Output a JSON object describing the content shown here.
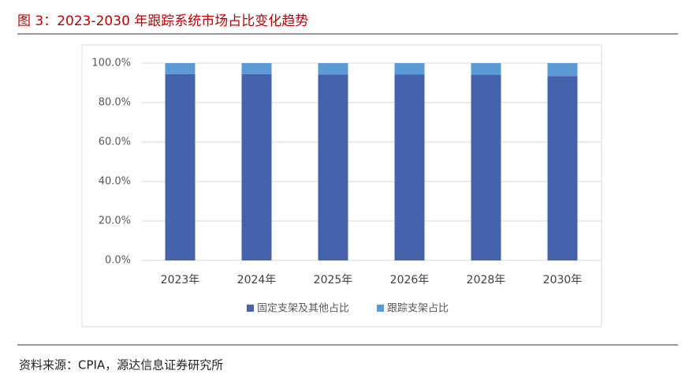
{
  "chart_data": {
    "type": "stacked_bar",
    "title": "图 3：2023-2030 年跟踪系统市场占比变化趋势",
    "source": "资料来源：CPIA，源达信息证券研究所",
    "categories": [
      "2023年",
      "2024年",
      "2025年",
      "2026年",
      "2028年",
      "2030年"
    ],
    "series": [
      {
        "name": "固定支架及其他占比",
        "color": "#4563ad",
        "values": [
          94.5,
          94.5,
          94.3,
          94.2,
          94.0,
          93.5
        ]
      },
      {
        "name": "跟踪支架占比",
        "color": "#5b9bd5",
        "values": [
          5.5,
          5.5,
          5.7,
          5.8,
          6.0,
          6.5
        ]
      }
    ],
    "ylim": [
      0,
      100
    ],
    "yticks": [
      {
        "value": 0,
        "label": "0.0%"
      },
      {
        "value": 20,
        "label": "20.0%"
      },
      {
        "value": 40,
        "label": "40.0%"
      },
      {
        "value": 60,
        "label": "60.0%"
      },
      {
        "value": 80,
        "label": "80.0%"
      },
      {
        "value": 100,
        "label": "100.0%"
      }
    ],
    "grid": true,
    "legend": "bottom"
  }
}
